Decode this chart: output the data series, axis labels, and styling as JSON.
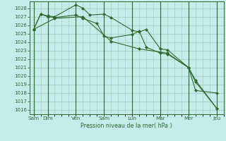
{
  "background_color": "#c5ecea",
  "grid_color": "#99ccbb",
  "line_color": "#2d6b2d",
  "x_labels": [
    "Sam",
    "Dim",
    "Ven",
    "Sam",
    "Lun",
    "Mar",
    "Mer",
    "Jeu"
  ],
  "x_ticks_pos": [
    0,
    1,
    3,
    5,
    7,
    9,
    11,
    13
  ],
  "ylabel": "Pression niveau de la mer( hPa )",
  "ylim": [
    1015.5,
    1028.8
  ],
  "yticks": [
    1016,
    1017,
    1018,
    1019,
    1020,
    1021,
    1022,
    1023,
    1024,
    1025,
    1026,
    1027,
    1028
  ],
  "xlim": [
    -0.3,
    13.5
  ],
  "line1_x": [
    0.0,
    0.5,
    1.0,
    1.5,
    3.0,
    3.5,
    4.0,
    5.0,
    5.5,
    7.0,
    7.5,
    8.0,
    9.0,
    9.5,
    11.0,
    11.5,
    13.0
  ],
  "line1_y": [
    1025.5,
    1027.3,
    1027.1,
    1027.0,
    1028.4,
    1028.0,
    1027.2,
    1027.3,
    1026.9,
    1025.4,
    1025.2,
    1025.5,
    1023.2,
    1023.1,
    1021.0,
    1018.3,
    1018.0
  ],
  "line2_x": [
    0.0,
    0.5,
    1.0,
    1.5,
    3.0,
    3.5,
    4.5,
    5.0,
    5.5,
    7.0,
    7.5,
    8.0,
    9.0,
    9.5,
    11.0,
    11.5,
    13.0
  ],
  "line2_y": [
    1025.5,
    1027.3,
    1027.0,
    1026.9,
    1027.2,
    1026.8,
    1026.2,
    1024.7,
    1024.5,
    1024.9,
    1025.3,
    1023.4,
    1022.7,
    1022.6,
    1021.0,
    1019.5,
    1016.2
  ],
  "line3_x": [
    0.0,
    1.5,
    3.5,
    5.5,
    7.5,
    9.5,
    11.0,
    11.5,
    13.0
  ],
  "line3_y": [
    1025.5,
    1026.8,
    1027.0,
    1024.1,
    1023.2,
    1022.7,
    1021.0,
    1019.3,
    1016.2
  ]
}
